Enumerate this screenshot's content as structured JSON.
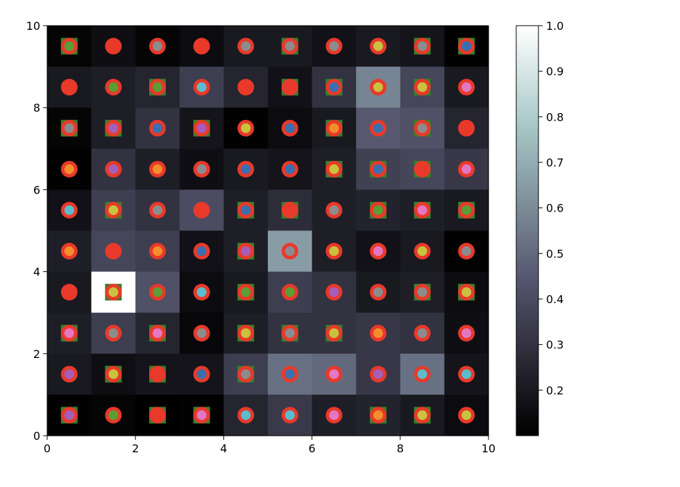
{
  "chart_data": {
    "type": "heatmap",
    "title": "",
    "xlabel": "",
    "ylabel": "",
    "xlim": [
      0,
      10
    ],
    "ylim": [
      0,
      10
    ],
    "x_ticks": [
      "0",
      "2",
      "4",
      "6",
      "8",
      "10"
    ],
    "y_ticks": [
      "0",
      "2",
      "4",
      "6",
      "8",
      "10"
    ],
    "colorbar": {
      "range": [
        0.1,
        1.0
      ],
      "colormap": "bone",
      "ticks": [
        "0.2",
        "0.3",
        "0.4",
        "0.5",
        "0.6",
        "0.7",
        "0.8",
        "0.9",
        "1.0"
      ]
    },
    "grid": false,
    "ring_color": "#e8392a",
    "square_color": "#3a7d2a",
    "marker_colors": {
      "R": "#e8392a",
      "G": "#5a9e35",
      "B": "#3a70b0",
      "O": "#f28e2b",
      "P": "#a55fb8",
      "K": "#e377c2",
      "Y": "#c8c23f",
      "C": "#5bbccc",
      "N": "#8c8c8c"
    },
    "cells": [
      [
        0.12,
        0.16,
        0.12,
        0.15,
        0.2,
        0.2,
        0.17,
        0.2,
        0.18,
        0.11
      ],
      [
        0.2,
        0.22,
        0.25,
        0.35,
        0.25,
        0.17,
        0.3,
        0.58,
        0.38,
        0.2
      ],
      [
        0.12,
        0.22,
        0.3,
        0.18,
        0.11,
        0.15,
        0.2,
        0.45,
        0.42,
        0.25
      ],
      [
        0.11,
        0.3,
        0.22,
        0.16,
        0.2,
        0.18,
        0.22,
        0.36,
        0.38,
        0.32
      ],
      [
        0.17,
        0.35,
        0.3,
        0.4,
        0.22,
        0.28,
        0.22,
        0.24,
        0.22,
        0.2
      ],
      [
        0.22,
        0.38,
        0.35,
        0.17,
        0.22,
        0.65,
        0.22,
        0.17,
        0.2,
        0.11
      ],
      [
        0.2,
        1.0,
        0.42,
        0.15,
        0.2,
        0.35,
        0.3,
        0.2,
        0.22,
        0.15
      ],
      [
        0.22,
        0.35,
        0.25,
        0.13,
        0.22,
        0.3,
        0.3,
        0.32,
        0.3,
        0.16
      ],
      [
        0.2,
        0.16,
        0.18,
        0.18,
        0.35,
        0.52,
        0.5,
        0.32,
        0.52,
        0.18
      ],
      [
        0.11,
        0.12,
        0.1,
        0.11,
        0.25,
        0.33,
        0.22,
        0.24,
        0.2,
        0.15
      ]
    ],
    "markers": [
      [
        {
          "c": "P",
          "s": true
        },
        {
          "c": "G",
          "s": false
        },
        {
          "c": "R",
          "s": true
        },
        {
          "c": "K",
          "s": true
        },
        {
          "c": "C",
          "s": false
        },
        {
          "c": "C",
          "s": false
        },
        {
          "c": "K",
          "s": false
        },
        {
          "c": "O",
          "s": true
        },
        {
          "c": "Y",
          "s": true
        },
        {
          "c": "Y",
          "s": false
        }
      ],
      [
        {
          "c": "P",
          "s": false
        },
        {
          "c": "Y",
          "s": true
        },
        {
          "c": "R",
          "s": true
        },
        {
          "c": "B",
          "s": false
        },
        {
          "c": "N",
          "s": true
        },
        {
          "c": "B",
          "s": false
        },
        {
          "c": "K",
          "s": false
        },
        {
          "c": "P",
          "s": false
        },
        {
          "c": "C",
          "s": false
        },
        {
          "c": "C",
          "s": false
        }
      ],
      [
        {
          "c": "K",
          "s": true
        },
        {
          "c": "N",
          "s": false
        },
        {
          "c": "K",
          "s": true
        },
        {
          "c": "N",
          "s": false
        },
        {
          "c": "Y",
          "s": true
        },
        {
          "c": "N",
          "s": true
        },
        {
          "c": "Y",
          "s": true
        },
        {
          "c": "O",
          "s": false
        },
        {
          "c": "N",
          "s": false
        },
        {
          "c": "K",
          "s": false
        }
      ],
      [
        {
          "c": "R",
          "s": false
        },
        {
          "c": "Y",
          "s": true
        },
        {
          "c": "G",
          "s": false
        },
        {
          "c": "C",
          "s": false
        },
        {
          "c": "G",
          "s": true
        },
        {
          "c": "G",
          "s": false
        },
        {
          "c": "P",
          "s": false
        },
        {
          "c": "N",
          "s": false
        },
        {
          "c": "N",
          "s": true
        },
        {
          "c": "Y",
          "s": true
        }
      ],
      [
        {
          "c": "O",
          "s": false
        },
        {
          "c": "R",
          "s": false
        },
        {
          "c": "O",
          "s": false
        },
        {
          "c": "B",
          "s": false
        },
        {
          "c": "P",
          "s": true
        },
        {
          "c": "N",
          "s": false
        },
        {
          "c": "Y",
          "s": false
        },
        {
          "c": "K",
          "s": false
        },
        {
          "c": "Y",
          "s": false
        },
        {
          "c": "N",
          "s": false
        }
      ],
      [
        {
          "c": "C",
          "s": false
        },
        {
          "c": "Y",
          "s": true
        },
        {
          "c": "N",
          "s": false
        },
        {
          "c": "R",
          "s": false
        },
        {
          "c": "B",
          "s": true
        },
        {
          "c": "R",
          "s": true
        },
        {
          "c": "N",
          "s": false
        },
        {
          "c": "G",
          "s": true
        },
        {
          "c": "K",
          "s": true
        },
        {
          "c": "G",
          "s": true
        }
      ],
      [
        {
          "c": "O",
          "s": false
        },
        {
          "c": "P",
          "s": false
        },
        {
          "c": "O",
          "s": false
        },
        {
          "c": "N",
          "s": false
        },
        {
          "c": "B",
          "s": false
        },
        {
          "c": "B",
          "s": false
        },
        {
          "c": "Y",
          "s": true
        },
        {
          "c": "B",
          "s": true
        },
        {
          "c": "R",
          "s": true
        },
        {
          "c": "K",
          "s": false
        }
      ],
      [
        {
          "c": "N",
          "s": true
        },
        {
          "c": "P",
          "s": true
        },
        {
          "c": "B",
          "s": false
        },
        {
          "c": "P",
          "s": true
        },
        {
          "c": "Y",
          "s": false
        },
        {
          "c": "B",
          "s": false
        },
        {
          "c": "O",
          "s": true
        },
        {
          "c": "B",
          "s": false
        },
        {
          "c": "N",
          "s": true
        },
        {
          "c": "R",
          "s": false
        }
      ],
      [
        {
          "c": "R",
          "s": false
        },
        {
          "c": "G",
          "s": false
        },
        {
          "c": "G",
          "s": true
        },
        {
          "c": "C",
          "s": false
        },
        {
          "c": "R",
          "s": false
        },
        {
          "c": "R",
          "s": true
        },
        {
          "c": "B",
          "s": true
        },
        {
          "c": "Y",
          "s": false
        },
        {
          "c": "Y",
          "s": true
        },
        {
          "c": "K",
          "s": false
        }
      ],
      [
        {
          "c": "G",
          "s": true
        },
        {
          "c": "R",
          "s": false
        },
        {
          "c": "N",
          "s": false
        },
        {
          "c": "R",
          "s": false
        },
        {
          "c": "N",
          "s": false
        },
        {
          "c": "N",
          "s": true
        },
        {
          "c": "N",
          "s": false
        },
        {
          "c": "Y",
          "s": false
        },
        {
          "c": "N",
          "s": true
        },
        {
          "c": "B",
          "s": true
        }
      ]
    ]
  }
}
